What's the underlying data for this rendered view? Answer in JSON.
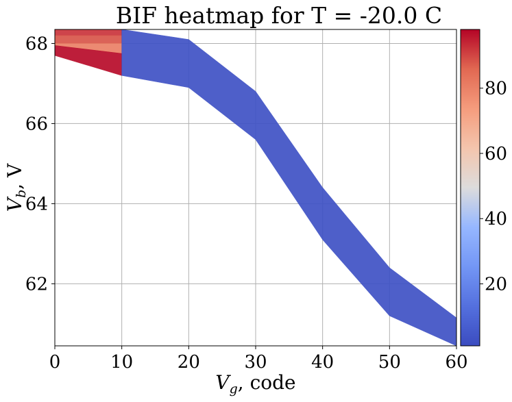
{
  "chart_data": {
    "type": "heatmap",
    "title": "BIF heatmap for T = -20.0 C",
    "xlabel_main": "V",
    "xlabel_sub": "g",
    "xlabel_suffix": ", code",
    "ylabel_main": "V",
    "ylabel_sub": "b",
    "ylabel_suffix": ", V",
    "xlim": [
      0,
      60
    ],
    "ylim": [
      60.45,
      68.35
    ],
    "x_ticks": [
      0,
      10,
      20,
      30,
      40,
      50,
      60
    ],
    "y_ticks": [
      62,
      64,
      66,
      68
    ],
    "grid": true,
    "colormap": "coolwarm",
    "color_range": [
      1,
      98
    ],
    "colorbar_ticks": [
      20,
      40,
      60,
      80
    ],
    "band": {
      "x": [
        0,
        10,
        20,
        30,
        40,
        50,
        60
      ],
      "y_low": [
        67.7,
        67.2,
        66.9,
        65.6,
        63.1,
        61.2,
        60.45
      ],
      "y_high": [
        68.35,
        68.35,
        68.1,
        66.8,
        64.4,
        62.4,
        61.15
      ]
    },
    "values": [
      {
        "x": [
          0,
          10
        ],
        "y_low": [
          68.2,
          68.2
        ],
        "y_high": [
          68.35,
          68.35
        ],
        "value": 92
      },
      {
        "x": [
          0,
          10
        ],
        "y_low": [
          68.0,
          68.0
        ],
        "y_high": [
          68.2,
          68.2
        ],
        "value": 88
      },
      {
        "x": [
          0,
          10
        ],
        "y_low": [
          67.95,
          67.75
        ],
        "y_high": [
          68.0,
          68.0
        ],
        "value": 80
      },
      {
        "x": [
          0,
          10
        ],
        "y_low": [
          67.7,
          67.2
        ],
        "y_high": [
          67.95,
          67.75
        ],
        "value": 97
      },
      {
        "x": [
          10,
          20,
          30,
          40,
          50,
          60
        ],
        "y_low": [
          67.2,
          66.9,
          65.6,
          63.1,
          61.2,
          60.45
        ],
        "y_high": [
          68.35,
          68.1,
          66.8,
          64.4,
          62.4,
          61.15
        ],
        "value": 3
      }
    ]
  }
}
